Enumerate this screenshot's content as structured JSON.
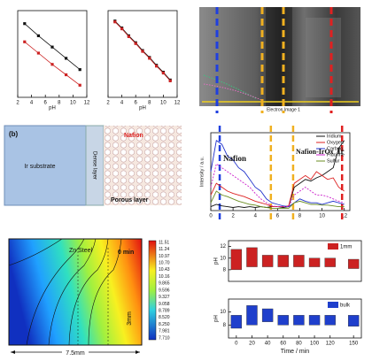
{
  "chart_data": [
    {
      "type": "line",
      "xlabel": "pH",
      "xlim": [
        2,
        12
      ],
      "ylim": [
        0,
        10
      ],
      "xticks": [
        2,
        4,
        6,
        8,
        10,
        12
      ],
      "x": [
        3,
        5,
        7,
        9,
        11
      ],
      "series": [
        {
          "color": "#111111",
          "values": [
            8.5,
            7.1,
            5.8,
            4.5,
            3.2
          ]
        },
        {
          "color": "#cc2222",
          "values": [
            6.4,
            5.1,
            3.8,
            2.6,
            1.4
          ]
        }
      ]
    },
    {
      "type": "line",
      "xlabel": "pH",
      "xlim": [
        2,
        12
      ],
      "ylim": [
        0,
        10
      ],
      "xticks": [
        2,
        4,
        6,
        8,
        10,
        12
      ],
      "x": [
        3,
        4,
        5,
        6,
        7,
        8,
        9,
        10,
        11
      ],
      "series": [
        {
          "color": "#111111",
          "values": [
            8.8,
            8.0,
            7.1,
            6.3,
            5.4,
            4.6,
            3.7,
            2.9,
            2.0
          ]
        },
        {
          "color": "#cc2222",
          "values": [
            8.7,
            7.9,
            7.0,
            6.2,
            5.3,
            4.5,
            3.6,
            2.8,
            1.9
          ]
        }
      ]
    },
    {
      "type": "line",
      "ylabel": "Intensity / a.u.",
      "xlim": [
        0,
        12.5
      ],
      "ylim": [
        0,
        1
      ],
      "xticks": [
        0,
        2,
        4,
        6,
        8,
        10,
        12
      ],
      "x": [
        0,
        0.5,
        1,
        1.5,
        2,
        2.5,
        3,
        3.5,
        4,
        4.5,
        5,
        5.5,
        6,
        6.5,
        7,
        7.5,
        8,
        8.5,
        9,
        9.5,
        10,
        10.5,
        11,
        11.5,
        12
      ],
      "series": [
        {
          "name": "Iridium",
          "color": "#111111",
          "values": [
            0.05,
            0.08,
            0.06,
            0.05,
            0.04,
            0.05,
            0.04,
            0.05,
            0.04,
            0.05,
            0.04,
            0.05,
            0.05,
            0.04,
            0.05,
            0.3,
            0.35,
            0.4,
            0.38,
            0.42,
            0.45,
            0.5,
            0.55,
            0.8,
            0.9
          ]
        },
        {
          "name": "Oxygen",
          "color": "#dd2222",
          "values": [
            0.2,
            0.35,
            0.3,
            0.25,
            0.22,
            0.2,
            0.18,
            0.15,
            0.12,
            0.1,
            0.08,
            0.05,
            0.05,
            0.05,
            0.06,
            0.35,
            0.4,
            0.45,
            0.4,
            0.5,
            0.45,
            0.4,
            0.42,
            0.3,
            0.25
          ]
        },
        {
          "name": "Carbon",
          "color": "#2233cc",
          "values": [
            0.5,
            0.9,
            0.85,
            0.7,
            0.65,
            0.55,
            0.5,
            0.4,
            0.3,
            0.25,
            0.15,
            0.1,
            0.08,
            0.06,
            0.05,
            0.1,
            0.15,
            0.12,
            0.1,
            0.1,
            0.08,
            0.1,
            0.12,
            0.1,
            0.08
          ]
        },
        {
          "name": "Fluorine",
          "color": "#cc22cc",
          "values": [
            0.3,
            0.6,
            0.55,
            0.5,
            0.45,
            0.4,
            0.35,
            0.3,
            0.22,
            0.15,
            0.1,
            0.06,
            0.05,
            0.05,
            0.05,
            0.2,
            0.25,
            0.3,
            0.25,
            0.2,
            0.2,
            0.18,
            0.15,
            0.12,
            0.1
          ]
        },
        {
          "name": "Sulfur",
          "color": "#6b8e23",
          "values": [
            0.1,
            0.25,
            0.2,
            0.18,
            0.15,
            0.12,
            0.1,
            0.08,
            0.07,
            0.05,
            0.04,
            0.03,
            0.03,
            0.03,
            0.03,
            0.1,
            0.12,
            0.1,
            0.08,
            0.08,
            0.07,
            0.07,
            0.06,
            0.05,
            0.05
          ]
        }
      ],
      "markers": [
        {
          "x": 0.8,
          "color": "#1f3fe0"
        },
        {
          "x": 5.4,
          "color": "#f0b020"
        },
        {
          "x": 7.4,
          "color": "#f0b020"
        },
        {
          "x": 11.8,
          "color": "#e02020"
        }
      ],
      "annotations": [
        "Nafion",
        "Nafion-IrOx",
        "Ir"
      ]
    },
    {
      "type": "floating-bar",
      "ylabel": "pH",
      "ylim": [
        6,
        13
      ],
      "yticks": [
        8,
        10,
        12
      ],
      "xlim": [
        -10,
        160
      ],
      "x": [
        0,
        20,
        40,
        60,
        80,
        100,
        120,
        150
      ],
      "series": [
        {
          "name": "1mm",
          "color": "#cc2222",
          "values": [
            [
              8,
              11.5
            ],
            [
              8.5,
              11.8
            ],
            [
              8.5,
              10.5
            ],
            [
              8.5,
              10.5
            ],
            [
              8.5,
              10.5
            ],
            [
              8.5,
              10
            ],
            [
              8.5,
              10
            ],
            [
              8.2,
              9.8
            ]
          ]
        }
      ]
    },
    {
      "type": "floating-bar",
      "ylabel": "pH",
      "xlabel": "Time / min",
      "ylim": [
        6,
        12
      ],
      "yticks": [
        8,
        10
      ],
      "xlim": [
        -10,
        160
      ],
      "xticks": [
        0,
        20,
        40,
        60,
        80,
        100,
        120,
        150
      ],
      "x": [
        0,
        20,
        40,
        60,
        80,
        100,
        120,
        150
      ],
      "series": [
        {
          "name": "bulk",
          "color": "#1f3fcc",
          "values": [
            [
              7.5,
              9.5
            ],
            [
              8,
              11
            ],
            [
              8.5,
              10.5
            ],
            [
              8,
              9.5
            ],
            [
              8,
              9.5
            ],
            [
              8,
              9.5
            ],
            [
              8,
              9.5
            ],
            [
              7.8,
              9.5
            ]
          ]
        }
      ]
    }
  ],
  "image_panel": {
    "caption": "Electron Image 1"
  },
  "diagram": {
    "label": "(b)",
    "substrate": "Ir substrate",
    "dense": "Dense layer",
    "top": "Nafion",
    "porous": "Porous layer"
  },
  "contour": {
    "material": "Zn Steel",
    "time": "0 min",
    "width": "7.5mm",
    "depth": "3mm",
    "colorbar_labels": [
      "11.51",
      "11.24",
      "10.97",
      "10.70",
      "10.43",
      "10.16",
      "9.865",
      "9.596",
      "9.327",
      "9.058",
      "8.789",
      "8.520",
      "8.250",
      "7.981",
      "7.710"
    ]
  }
}
